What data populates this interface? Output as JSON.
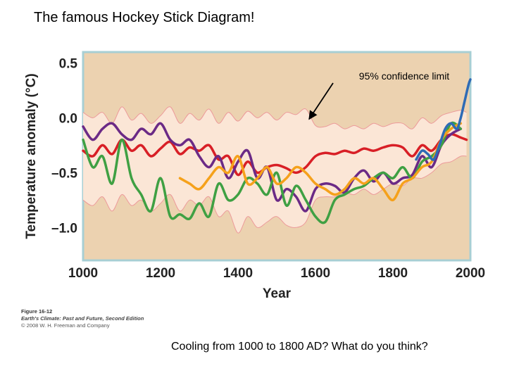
{
  "slide": {
    "title": "The famous Hockey Stick Diagram!",
    "caption": "Cooling from 1000 to 1800 AD?  What do you think?"
  },
  "figure_credit": {
    "number": "Figure 16-12",
    "book": "Earth's Climate: Past and Future, Second Edition",
    "copyright": "© 2008 W. H. Freeman and Company"
  },
  "colors": {
    "plot_background": "#ecd2b0",
    "plot_border": "#a7cfd4",
    "confidence_band": "#fbe6d6",
    "confidence_edge": "#ec9a9a",
    "mann": "#d81f26",
    "purple": "#6b2a86",
    "green": "#3fa043",
    "orange": "#f5a11b",
    "instrumental": "#2e6bb5"
  },
  "chart_data": {
    "type": "line",
    "title": "",
    "xlabel": "Year",
    "ylabel": "Temperature anomaly (°C)",
    "xlim": [
      1000,
      2000
    ],
    "ylim": [
      -1.3,
      0.6
    ],
    "x_ticks": [
      1000,
      1200,
      1400,
      1600,
      1800,
      2000
    ],
    "y_ticks": [
      0.5,
      0.0,
      -0.5,
      -1.0
    ],
    "x_tick_labels": [
      "1000",
      "1200",
      "1400",
      "1600",
      "1800",
      "2000"
    ],
    "y_tick_labels": [
      "0.5",
      "0.0",
      "–0.5",
      "–1.0"
    ],
    "grid": false,
    "annotation": {
      "text": "95% confidence limit",
      "arrow_to": [
        1580,
        -0.05
      ]
    },
    "band": {
      "x": [
        1000,
        1025,
        1050,
        1075,
        1100,
        1125,
        1150,
        1175,
        1200,
        1225,
        1250,
        1275,
        1300,
        1325,
        1350,
        1375,
        1400,
        1425,
        1450,
        1475,
        1500,
        1525,
        1550,
        1575,
        1600,
        1625,
        1650,
        1675,
        1700,
        1725,
        1750,
        1775,
        1800,
        1825,
        1850,
        1875,
        1900,
        1925,
        1950,
        1975,
        1990
      ],
      "upper": [
        0.05,
        0.0,
        0.05,
        -0.05,
        0.1,
        -0.02,
        0.04,
        -0.05,
        0.02,
        0.1,
        -0.05,
        0.04,
        -0.02,
        0.08,
        -0.05,
        0.05,
        -0.03,
        0.06,
        0.0,
        0.05,
        -0.02,
        0.05,
        0.03,
        0.08,
        -0.07,
        -0.08,
        -0.05,
        -0.1,
        -0.07,
        -0.1,
        -0.05,
        -0.08,
        -0.05,
        -0.05,
        -0.1,
        0.0,
        -0.05,
        0.02,
        0.05,
        0.07,
        0.05
      ],
      "lower": [
        -0.75,
        -0.8,
        -0.72,
        -0.85,
        -0.7,
        -0.8,
        -0.75,
        -0.85,
        -0.78,
        -0.7,
        -0.85,
        -0.75,
        -0.8,
        -0.72,
        -0.9,
        -0.85,
        -1.05,
        -0.9,
        -1.0,
        -0.95,
        -0.9,
        -0.98,
        -1.0,
        -0.95,
        -0.75,
        -0.72,
        -0.72,
        -0.68,
        -0.7,
        -0.65,
        -0.7,
        -0.65,
        -0.6,
        -0.62,
        -0.55,
        -0.55,
        -0.5,
        -0.42,
        -0.4,
        -0.35,
        -0.35
      ]
    },
    "series": [
      {
        "color": "#d81f26",
        "x": [
          1000,
          1025,
          1050,
          1075,
          1100,
          1125,
          1150,
          1175,
          1200,
          1225,
          1250,
          1275,
          1300,
          1325,
          1350,
          1375,
          1400,
          1425,
          1450,
          1475,
          1500,
          1525,
          1550,
          1575,
          1600,
          1625,
          1650,
          1675,
          1700,
          1725,
          1750,
          1775,
          1800,
          1825,
          1850,
          1875,
          1900,
          1925,
          1950,
          1975,
          1990
        ],
        "y": [
          -0.3,
          -0.35,
          -0.25,
          -0.33,
          -0.2,
          -0.3,
          -0.25,
          -0.35,
          -0.28,
          -0.22,
          -0.33,
          -0.27,
          -0.3,
          -0.25,
          -0.38,
          -0.35,
          -0.52,
          -0.4,
          -0.5,
          -0.45,
          -0.43,
          -0.46,
          -0.5,
          -0.45,
          -0.35,
          -0.32,
          -0.33,
          -0.3,
          -0.32,
          -0.28,
          -0.3,
          -0.27,
          -0.25,
          -0.27,
          -0.35,
          -0.25,
          -0.3,
          -0.2,
          -0.15,
          -0.18,
          -0.2
        ]
      },
      {
        "color": "#6b2a86",
        "x": [
          1000,
          1025,
          1050,
          1075,
          1100,
          1125,
          1150,
          1175,
          1200,
          1225,
          1250,
          1275,
          1300,
          1325,
          1350,
          1375,
          1400,
          1425,
          1450,
          1475,
          1500,
          1525,
          1550,
          1575,
          1600,
          1625,
          1650,
          1675,
          1700,
          1725,
          1750,
          1775,
          1800,
          1825,
          1850,
          1875,
          1900,
          1925,
          1950,
          1975
        ],
        "y": [
          -0.08,
          -0.2,
          -0.1,
          -0.05,
          -0.15,
          -0.2,
          -0.1,
          -0.15,
          -0.05,
          -0.2,
          -0.25,
          -0.2,
          -0.35,
          -0.45,
          -0.35,
          -0.55,
          -0.4,
          -0.3,
          -0.55,
          -0.45,
          -0.75,
          -0.65,
          -0.72,
          -0.85,
          -0.65,
          -0.6,
          -0.62,
          -0.68,
          -0.55,
          -0.48,
          -0.58,
          -0.5,
          -0.6,
          -0.55,
          -0.52,
          -0.35,
          -0.45,
          -0.25,
          -0.15,
          -0.1
        ]
      },
      {
        "color": "#3fa043",
        "x": [
          1000,
          1025,
          1050,
          1075,
          1100,
          1125,
          1150,
          1175,
          1200,
          1225,
          1250,
          1275,
          1300,
          1325,
          1350,
          1375,
          1400,
          1425,
          1450,
          1475,
          1500,
          1525,
          1550,
          1575,
          1600,
          1625,
          1650,
          1675,
          1700,
          1725,
          1750,
          1775,
          1800,
          1825,
          1850,
          1875,
          1900,
          1925,
          1950,
          1975
        ],
        "y": [
          -0.2,
          -0.45,
          -0.35,
          -0.6,
          -0.2,
          -0.55,
          -0.7,
          -0.85,
          -0.55,
          -0.9,
          -0.88,
          -0.92,
          -0.78,
          -0.9,
          -0.6,
          -0.75,
          -0.7,
          -0.55,
          -0.6,
          -0.7,
          -0.5,
          -0.8,
          -0.62,
          -0.75,
          -0.9,
          -0.95,
          -0.75,
          -0.7,
          -0.65,
          -0.62,
          -0.55,
          -0.5,
          -0.55,
          -0.45,
          -0.55,
          -0.4,
          -0.35,
          -0.25,
          -0.05,
          -0.1
        ]
      },
      {
        "color": "#f5a11b",
        "x": [
          1250,
          1275,
          1300,
          1325,
          1350,
          1375,
          1400,
          1425,
          1450,
          1475,
          1500,
          1525,
          1550,
          1575,
          1600,
          1625,
          1650,
          1675,
          1700,
          1725,
          1750,
          1775,
          1800,
          1825,
          1850,
          1875,
          1900,
          1925,
          1950,
          1975
        ],
        "y": [
          -0.55,
          -0.6,
          -0.65,
          -0.55,
          -0.45,
          -0.5,
          -0.35,
          -0.6,
          -0.55,
          -0.45,
          -0.6,
          -0.55,
          -0.45,
          -0.5,
          -0.6,
          -0.65,
          -0.7,
          -0.65,
          -0.55,
          -0.6,
          -0.55,
          -0.65,
          -0.75,
          -0.6,
          -0.55,
          -0.45,
          -0.4,
          -0.2,
          -0.1,
          -0.05
        ]
      },
      {
        "color": "#2e6bb5",
        "x": [
          1860,
          1875,
          1890,
          1905,
          1920,
          1935,
          1950,
          1965,
          1975,
          1985,
          1995,
          2000
        ],
        "y": [
          -0.38,
          -0.3,
          -0.33,
          -0.38,
          -0.25,
          -0.1,
          -0.05,
          -0.1,
          0.0,
          0.15,
          0.3,
          0.35
        ]
      }
    ]
  }
}
